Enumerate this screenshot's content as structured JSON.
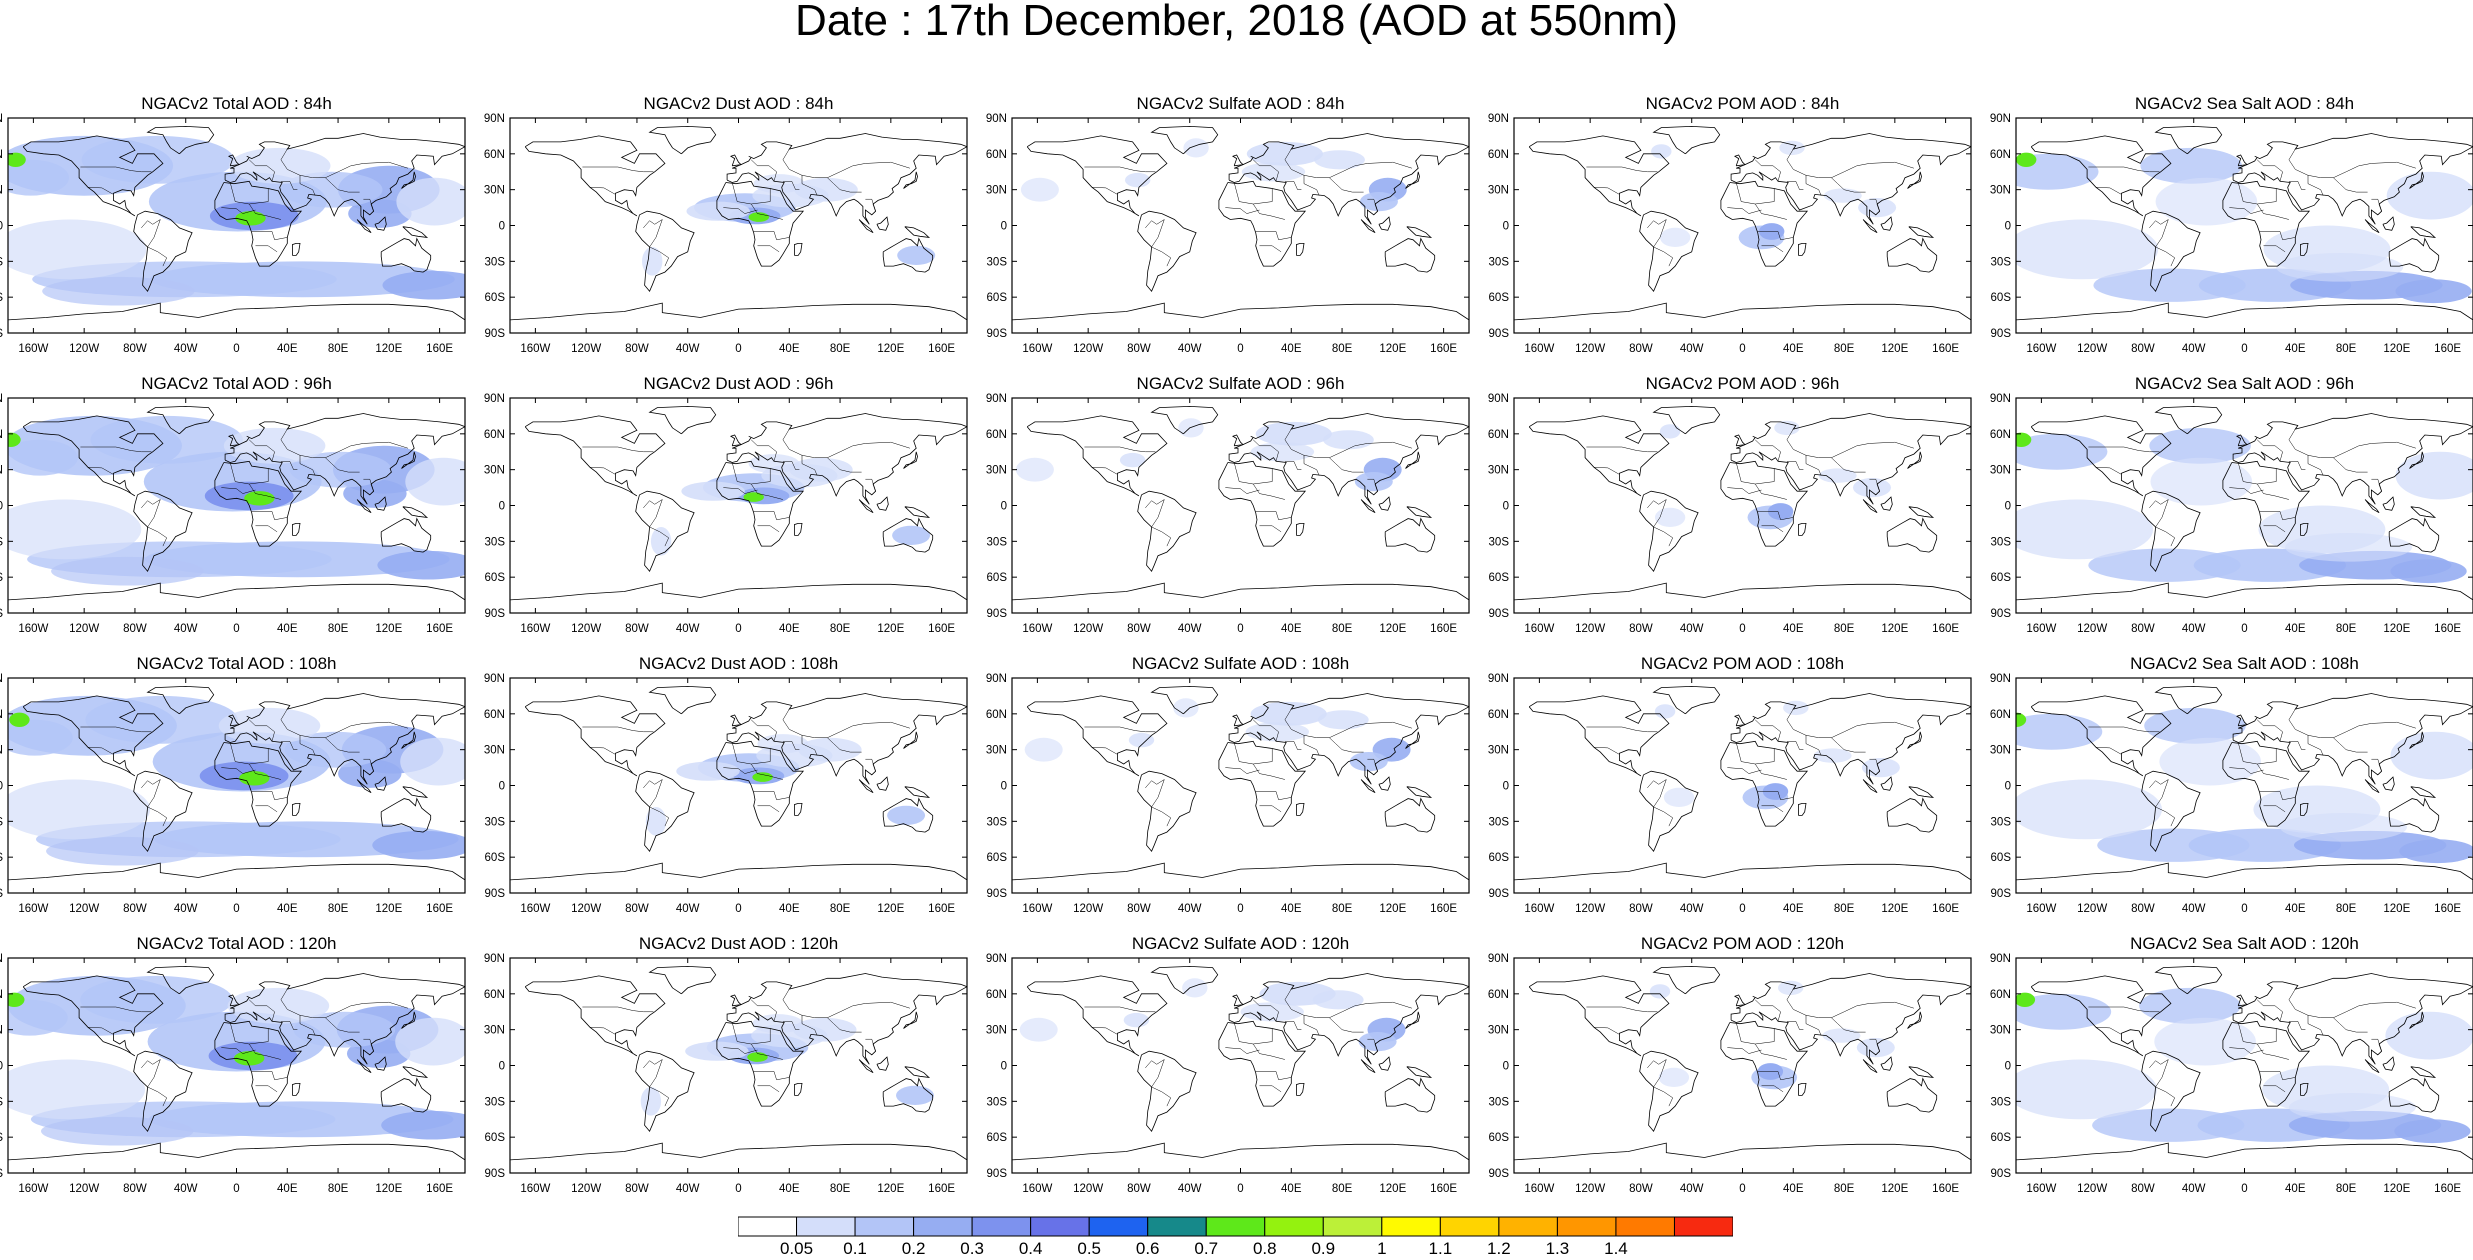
{
  "title": "Date : 17th December, 2018 (AOD at 550nm)",
  "panels": [
    {
      "title": "NGACv2 Total AOD : 84h",
      "field": "total"
    },
    {
      "title": "NGACv2 Dust AOD : 84h",
      "field": "dust"
    },
    {
      "title": "NGACv2 Sulfate AOD : 84h",
      "field": "sulfate"
    },
    {
      "title": "NGACv2 POM AOD : 84h",
      "field": "pom"
    },
    {
      "title": "NGACv2 Sea Salt AOD : 84h",
      "field": "seasalt"
    },
    {
      "title": "NGACv2 Total AOD : 96h",
      "field": "total"
    },
    {
      "title": "NGACv2 Dust AOD : 96h",
      "field": "dust"
    },
    {
      "title": "NGACv2 Sulfate AOD : 96h",
      "field": "sulfate"
    },
    {
      "title": "NGACv2 POM AOD : 96h",
      "field": "pom"
    },
    {
      "title": "NGACv2 Sea Salt AOD : 96h",
      "field": "seasalt"
    },
    {
      "title": "NGACv2 Total AOD : 108h",
      "field": "total"
    },
    {
      "title": "NGACv2 Dust AOD : 108h",
      "field": "dust"
    },
    {
      "title": "NGACv2 Sulfate AOD : 108h",
      "field": "sulfate"
    },
    {
      "title": "NGACv2 POM AOD : 108h",
      "field": "pom"
    },
    {
      "title": "NGACv2 Sea Salt AOD : 108h",
      "field": "seasalt"
    },
    {
      "title": "NGACv2 Total AOD : 120h",
      "field": "total"
    },
    {
      "title": "NGACv2 Dust AOD : 120h",
      "field": "dust"
    },
    {
      "title": "NGACv2 Sulfate AOD : 120h",
      "field": "sulfate"
    },
    {
      "title": "NGACv2 POM AOD : 120h",
      "field": "pom"
    },
    {
      "title": "NGACv2 Sea Salt  AOD : 120h",
      "field": "seasalt"
    }
  ],
  "lat_labels": [
    "90N",
    "60N",
    "30N",
    "0",
    "30S",
    "60S",
    "90S"
  ],
  "lon_labels": [
    "160W",
    "120W",
    "80W",
    "40W",
    "0",
    "40E",
    "80E",
    "120E",
    "160E"
  ],
  "colorbar": {
    "labels": [
      "0.05",
      "0.1",
      "0.2",
      "0.3",
      "0.4",
      "0.5",
      "0.6",
      "0.7",
      "0.8",
      "0.9",
      "1",
      "1.1",
      "1.2",
      "1.3",
      "1.4"
    ],
    "colors": [
      "#ffffff",
      "#d4defa",
      "#b3c5f7",
      "#96adf2",
      "#7d92ee",
      "#6772e8",
      "#1e63f0",
      "#16898a",
      "#5ee81a",
      "#94f20f",
      "#bcf038",
      "#fffa00",
      "#ffd400",
      "#ffb200",
      "#ff9600",
      "#ff7a00",
      "#f72a10"
    ]
  },
  "colors": {
    "land_outline": "#000000",
    "frame": "#000000"
  }
}
